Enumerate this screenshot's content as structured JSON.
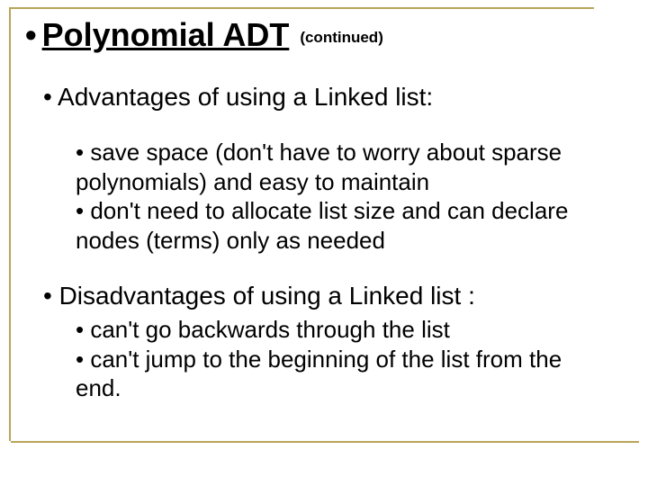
{
  "title": "Polynomial ADT",
  "continued": "(continued)",
  "advantages_heading": "• Advantages of using a Linked list:",
  "advantages_body": "• save space (don't have to worry about sparse polynomials) and easy to maintain\n• don't need to allocate list size and can declare nodes (terms) only as needed",
  "disadvantages_heading": "• Disadvantages of using a Linked list :",
  "disadvantages_body": "• can't go backwards through the list\n• can't jump to the beginning of the list from the end.",
  "colors": {
    "frame": "#b9a559",
    "text": "#000000",
    "background": "#ffffff"
  },
  "typography": {
    "title_fontsize": 36,
    "heading_fontsize": 28,
    "body_fontsize": 26,
    "continued_fontsize": 17,
    "font_family": "Arial"
  }
}
